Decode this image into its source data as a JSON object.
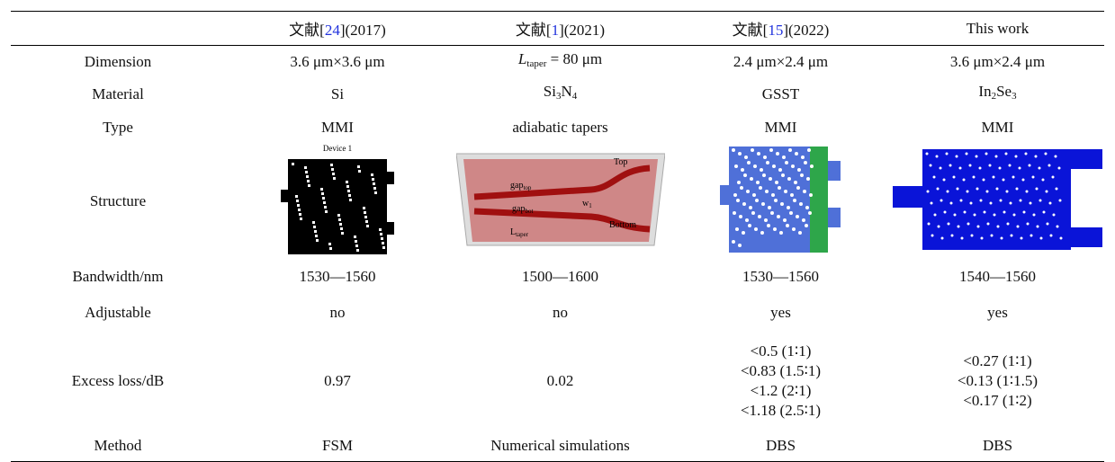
{
  "table": {
    "header": [
      {
        "pre": "文献[",
        "ref": "24",
        "post": "](2017)"
      },
      {
        "pre": "文献[",
        "ref": "1",
        "post": "](2021)"
      },
      {
        "pre": "文献[",
        "ref": "15",
        "post": "](2022)"
      },
      {
        "text": "This work"
      }
    ],
    "rows": [
      {
        "label": "Dimension",
        "cells": [
          [
            [
              "3.6 μm×3.6 μm"
            ]
          ],
          [
            [
              {
                "it": "L"
              },
              {
                "sub": "taper"
              },
              " = 80 μm"
            ]
          ],
          [
            [
              "2.4 μm×2.4 μm"
            ]
          ],
          [
            [
              "3.6 μm×2.4 μm"
            ]
          ]
        ]
      },
      {
        "label": "Material",
        "cells": [
          [
            [
              "Si"
            ]
          ],
          [
            [
              "Si",
              {
                "sub": "3"
              },
              "N",
              {
                "sub": "4"
              }
            ]
          ],
          [
            [
              "GSST"
            ]
          ],
          [
            [
              "In",
              {
                "sub": "2"
              },
              "Se",
              {
                "sub": "3"
              }
            ]
          ]
        ]
      },
      {
        "label": "Type",
        "cells": [
          [
            [
              "MMI"
            ]
          ],
          [
            [
              "adiabatic tapers"
            ]
          ],
          [
            [
              "MMI"
            ]
          ],
          [
            [
              "MMI"
            ]
          ]
        ]
      },
      {
        "label": "Structure"
      },
      {
        "label": "Bandwidth/nm",
        "cells": [
          [
            [
              "1530—1560"
            ]
          ],
          [
            [
              "1500—1600"
            ]
          ],
          [
            [
              "1530—1560"
            ]
          ],
          [
            [
              "1540—1560"
            ]
          ]
        ]
      },
      {
        "label": "Adjustable",
        "cells": [
          [
            [
              "no"
            ]
          ],
          [
            [
              "no"
            ]
          ],
          [
            [
              "yes"
            ]
          ],
          [
            [
              "yes"
            ]
          ]
        ]
      },
      {
        "label": "Excess loss/dB",
        "cells": [
          [
            [
              "0.97"
            ]
          ],
          [
            [
              "0.02"
            ]
          ],
          [
            [
              "<0.5 (1∶1)"
            ],
            [
              "<0.83 (1.5∶1)"
            ],
            [
              "<1.2 (2∶1)"
            ],
            [
              "<1.18 (2.5∶1)"
            ]
          ],
          [
            [
              "<0.27 (1∶1)"
            ],
            [
              "<0.13 (1∶1.5)"
            ],
            [
              "<0.17 (1∶2)"
            ]
          ]
        ]
      },
      {
        "label": "Method",
        "cells": [
          [
            [
              "FSM"
            ]
          ],
          [
            [
              "Numerical simulations"
            ]
          ],
          [
            [
              "DBS"
            ]
          ],
          [
            [
              "DBS"
            ]
          ]
        ]
      }
    ],
    "figures": {
      "device_caption": "Device 1",
      "taper_labels": {
        "top": "Top",
        "gap_top": [
          "gap",
          "top"
        ],
        "w": [
          "w",
          "1"
        ],
        "gap_bot": [
          "gap",
          "bot"
        ],
        "l_taper": [
          "L",
          "taper"
        ],
        "bottom": "Bottom"
      }
    }
  }
}
